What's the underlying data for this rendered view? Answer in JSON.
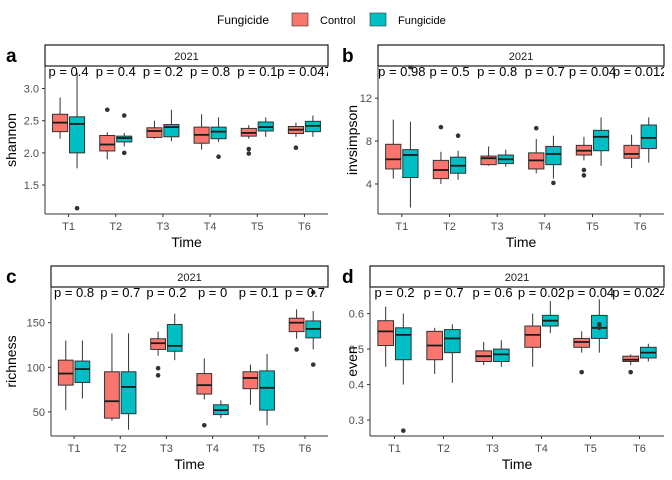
{
  "legend": {
    "title": "Fungicide",
    "entries": [
      {
        "label": "Control",
        "color": "#F8766D"
      },
      {
        "label": "Fungicide",
        "color": "#00BFC4"
      }
    ]
  },
  "chart_data": [
    {
      "type": "box",
      "tag": "a",
      "strip": "2021",
      "pvals": [
        "p = 0.4",
        "p = 0.4",
        "p = 0.2",
        "p = 0.8",
        "p = 0.1",
        "p = 0.047"
      ],
      "xlabel": "Time",
      "ylabel": "shannon",
      "categories": [
        "T1",
        "T2",
        "T3",
        "T4",
        "T5",
        "T6"
      ],
      "ylim": [
        1.05,
        3.35
      ],
      "yticks": [
        1.5,
        2.0,
        2.5,
        3.0
      ],
      "yticklabels": [
        "1.5",
        "2.0",
        "2.5",
        "3.0"
      ],
      "series": [
        {
          "name": "Control",
          "boxes": [
            {
              "q1": 2.33,
              "med": 2.47,
              "q3": 2.6,
              "lo": 2.22,
              "hi": 2.86,
              "out": []
            },
            {
              "q1": 2.03,
              "med": 2.13,
              "q3": 2.27,
              "lo": 1.9,
              "hi": 2.32,
              "out": [
                2.67
              ]
            },
            {
              "q1": 2.24,
              "med": 2.34,
              "q3": 2.39,
              "lo": 2.22,
              "hi": 2.5,
              "out": []
            },
            {
              "q1": 2.15,
              "med": 2.28,
              "q3": 2.4,
              "lo": 2.05,
              "hi": 2.6,
              "out": []
            },
            {
              "q1": 2.26,
              "med": 2.31,
              "q3": 2.38,
              "lo": 2.22,
              "hi": 2.43,
              "out": [
                2.06,
                1.99
              ]
            },
            {
              "q1": 2.3,
              "med": 2.36,
              "q3": 2.41,
              "lo": 2.25,
              "hi": 2.47,
              "out": [
                2.08
              ]
            }
          ]
        },
        {
          "name": "Fungicide",
          "boxes": [
            {
              "q1": 2.0,
              "med": 2.45,
              "q3": 2.56,
              "lo": 1.76,
              "hi": 3.25,
              "out": [
                1.14
              ]
            },
            {
              "q1": 2.17,
              "med": 2.23,
              "q3": 2.26,
              "lo": 2.1,
              "hi": 2.31,
              "out": [
                2.58,
                2.0
              ]
            },
            {
              "q1": 2.25,
              "med": 2.4,
              "q3": 2.44,
              "lo": 2.18,
              "hi": 2.67,
              "out": []
            },
            {
              "q1": 2.22,
              "med": 2.33,
              "q3": 2.4,
              "lo": 2.17,
              "hi": 2.55,
              "out": [
                1.94
              ]
            },
            {
              "q1": 2.34,
              "med": 2.4,
              "q3": 2.48,
              "lo": 2.25,
              "hi": 2.55,
              "out": []
            },
            {
              "q1": 2.33,
              "med": 2.42,
              "q3": 2.49,
              "lo": 2.25,
              "hi": 2.58,
              "out": []
            }
          ]
        }
      ]
    },
    {
      "type": "box",
      "tag": "b",
      "strip": "2021",
      "pvals": [
        "p = 0.98",
        "p = 0.5",
        "p = 0.8",
        "p = 0.7",
        "p = 0.04",
        "p = 0.012"
      ],
      "xlabel": "Time",
      "ylabel": "invsimpson",
      "categories": [
        "T1",
        "T2",
        "T3",
        "T4",
        "T5",
        "T6"
      ],
      "ylim": [
        1.2,
        15.0
      ],
      "yticks": [
        4,
        8,
        12
      ],
      "yticklabels": [
        "4",
        "8",
        "12"
      ],
      "series": [
        {
          "name": "Control",
          "boxes": [
            {
              "q1": 5.4,
              "med": 6.3,
              "q3": 7.7,
              "lo": 4.5,
              "hi": 10.0,
              "out": []
            },
            {
              "q1": 4.5,
              "med": 5.3,
              "q3": 6.2,
              "lo": 4.0,
              "hi": 7.0,
              "out": [
                9.3
              ]
            },
            {
              "q1": 5.8,
              "med": 6.4,
              "q3": 6.6,
              "lo": 5.7,
              "hi": 7.5,
              "out": []
            },
            {
              "q1": 5.4,
              "med": 6.2,
              "q3": 6.9,
              "lo": 5.0,
              "hi": 8.2,
              "out": [
                9.2
              ]
            },
            {
              "q1": 6.7,
              "med": 7.1,
              "q3": 7.6,
              "lo": 6.2,
              "hi": 8.4,
              "out": [
                5.3,
                4.8
              ]
            },
            {
              "q1": 6.4,
              "med": 6.8,
              "q3": 7.6,
              "lo": 5.5,
              "hi": 8.6,
              "out": []
            }
          ]
        },
        {
          "name": "Fungicide",
          "boxes": [
            {
              "q1": 4.6,
              "med": 6.7,
              "q3": 7.2,
              "lo": 1.8,
              "hi": 9.8,
              "out": [
                14.9
              ]
            },
            {
              "q1": 5.0,
              "med": 5.7,
              "q3": 6.5,
              "lo": 4.4,
              "hi": 7.1,
              "out": [
                8.5
              ]
            },
            {
              "q1": 5.9,
              "med": 6.3,
              "q3": 6.7,
              "lo": 5.6,
              "hi": 7.2,
              "out": []
            },
            {
              "q1": 5.8,
              "med": 6.8,
              "q3": 7.5,
              "lo": 4.5,
              "hi": 8.5,
              "out": [
                4.1
              ]
            },
            {
              "q1": 7.1,
              "med": 8.4,
              "q3": 9.0,
              "lo": 5.7,
              "hi": 10.2,
              "out": []
            },
            {
              "q1": 7.3,
              "med": 8.3,
              "q3": 9.5,
              "lo": 6.0,
              "hi": 10.2,
              "out": []
            }
          ]
        }
      ]
    },
    {
      "type": "box",
      "tag": "c",
      "strip": "2021",
      "pvals": [
        "p = 0.8",
        "p = 0.7",
        "p = 0.2",
        "p = 0",
        "p = 0.1",
        "p = 0.7"
      ],
      "xlabel": "Time",
      "ylabel": "richness",
      "categories": [
        "T1",
        "T2",
        "T3",
        "T4",
        "T5",
        "T6"
      ],
      "ylim": [
        23,
        190
      ],
      "yticks": [
        50,
        100,
        150
      ],
      "yticklabels": [
        "50",
        "100",
        "150"
      ],
      "series": [
        {
          "name": "Control",
          "boxes": [
            {
              "q1": 80,
              "med": 93,
              "q3": 108,
              "lo": 52,
              "hi": 130,
              "out": []
            },
            {
              "q1": 43,
              "med": 62,
              "q3": 95,
              "lo": 40,
              "hi": 138,
              "out": []
            },
            {
              "q1": 120,
              "med": 127,
              "q3": 132,
              "lo": 113,
              "hi": 140,
              "out": [
                99,
                91
              ]
            },
            {
              "q1": 70,
              "med": 80,
              "q3": 93,
              "lo": 64,
              "hi": 110,
              "out": [
                35
              ]
            },
            {
              "q1": 76,
              "med": 88,
              "q3": 95,
              "lo": 58,
              "hi": 103,
              "out": []
            },
            {
              "q1": 140,
              "med": 150,
              "q3": 155,
              "lo": 132,
              "hi": 165,
              "out": [
                120
              ]
            }
          ]
        },
        {
          "name": "Fungicide",
          "boxes": [
            {
              "q1": 83,
              "med": 98,
              "q3": 107,
              "lo": 65,
              "hi": 130,
              "out": []
            },
            {
              "q1": 48,
              "med": 78,
              "q3": 95,
              "lo": 30,
              "hi": 138,
              "out": []
            },
            {
              "q1": 118,
              "med": 124,
              "q3": 148,
              "lo": 108,
              "hi": 160,
              "out": []
            },
            {
              "q1": 47,
              "med": 52,
              "q3": 58,
              "lo": 43,
              "hi": 63,
              "out": []
            },
            {
              "q1": 52,
              "med": 77,
              "q3": 96,
              "lo": 35,
              "hi": 115,
              "out": []
            },
            {
              "q1": 133,
              "med": 143,
              "q3": 152,
              "lo": 120,
              "hi": 163,
              "out": [
                184,
                103
              ]
            }
          ]
        }
      ]
    },
    {
      "type": "box",
      "tag": "d",
      "strip": "2021",
      "pvals": [
        "p = 0.2",
        "p = 0.7",
        "p = 0.6",
        "p = 0.02",
        "p = 0.04",
        "p = 0.024"
      ],
      "xlabel": "Time",
      "ylabel": "even",
      "categories": [
        "T1",
        "T2",
        "T3",
        "T4",
        "T5",
        "T6"
      ],
      "ylim": [
        0.255,
        0.675
      ],
      "yticks": [
        0.3,
        0.4,
        0.5,
        0.6
      ],
      "yticklabels": [
        "0.3",
        "0.4",
        "0.5",
        "0.6"
      ],
      "series": [
        {
          "name": "Control",
          "boxes": [
            {
              "q1": 0.51,
              "med": 0.55,
              "q3": 0.58,
              "lo": 0.45,
              "hi": 0.62,
              "out": []
            },
            {
              "q1": 0.47,
              "med": 0.51,
              "q3": 0.55,
              "lo": 0.43,
              "hi": 0.56,
              "out": []
            },
            {
              "q1": 0.465,
              "med": 0.48,
              "q3": 0.495,
              "lo": 0.455,
              "hi": 0.52,
              "out": []
            },
            {
              "q1": 0.505,
              "med": 0.54,
              "q3": 0.565,
              "lo": 0.45,
              "hi": 0.6,
              "out": []
            },
            {
              "q1": 0.505,
              "med": 0.52,
              "q3": 0.53,
              "lo": 0.49,
              "hi": 0.55,
              "out": [
                0.435
              ]
            },
            {
              "q1": 0.465,
              "med": 0.47,
              "q3": 0.48,
              "lo": 0.455,
              "hi": 0.485,
              "out": [
                0.435
              ]
            }
          ]
        },
        {
          "name": "Fungicide",
          "boxes": [
            {
              "q1": 0.47,
              "med": 0.54,
              "q3": 0.56,
              "lo": 0.4,
              "hi": 0.6,
              "out": [
                0.27
              ]
            },
            {
              "q1": 0.49,
              "med": 0.53,
              "q3": 0.555,
              "lo": 0.405,
              "hi": 0.57,
              "out": [
                0.68
              ]
            },
            {
              "q1": 0.465,
              "med": 0.485,
              "q3": 0.5,
              "lo": 0.45,
              "hi": 0.525,
              "out": []
            },
            {
              "q1": 0.565,
              "med": 0.58,
              "q3": 0.595,
              "lo": 0.545,
              "hi": 0.635,
              "out": []
            },
            {
              "q1": 0.53,
              "med": 0.56,
              "q3": 0.595,
              "lo": 0.49,
              "hi": 0.64,
              "out": [
                0.57,
                0.56
              ]
            },
            {
              "q1": 0.475,
              "med": 0.49,
              "q3": 0.505,
              "lo": 0.465,
              "hi": 0.515,
              "out": []
            }
          ]
        }
      ]
    }
  ]
}
